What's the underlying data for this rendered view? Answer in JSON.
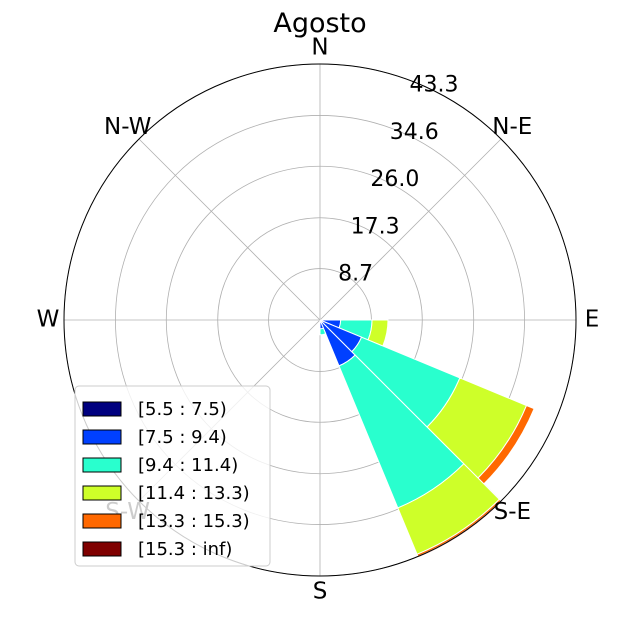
{
  "chart_data": {
    "type": "windrose",
    "title": "Agosto",
    "directions": [
      "N",
      "N-E",
      "E",
      "S-E",
      "S",
      "S-W",
      "W",
      "N-W"
    ],
    "radial_ticks": [
      "8.7",
      "17.3",
      "26.0",
      "34.6",
      "43.3"
    ],
    "radial_tick_values": [
      8.7,
      17.3,
      26.0,
      34.6,
      43.3
    ],
    "rmax": 43.3,
    "legend_placement": "lower-left",
    "grid": true,
    "bins": [
      {
        "label": "[5.5 : 7.5)",
        "color": "#00007f"
      },
      {
        "label": "[7.5 : 9.4)",
        "color": "#0040ff"
      },
      {
        "label": "[9.4 : 11.4)",
        "color": "#29ffce"
      },
      {
        "label": "[11.4 : 13.3)",
        "color": "#ceff29"
      },
      {
        "label": "[13.3 : 15.3)",
        "color": "#ff6800"
      },
      {
        "label": "[15.3 : inf)",
        "color": "#7f0000"
      }
    ],
    "sectors": [
      {
        "angle": 101.25,
        "values": [
          0.0,
          3.5,
          5.3,
          2.7,
          0.0,
          0.0
        ]
      },
      {
        "angle": 123.75,
        "values": [
          0.0,
          7.6,
          18.0,
          12.2,
          1.4,
          0.0
        ]
      },
      {
        "angle": 146.25,
        "values": [
          0.0,
          8.4,
          26.0,
          8.5,
          0.4,
          0.2
        ]
      },
      {
        "angle": 168.75,
        "values": [
          0.0,
          1.5,
          1.0,
          0.0,
          0.0,
          0.0
        ]
      }
    ]
  }
}
